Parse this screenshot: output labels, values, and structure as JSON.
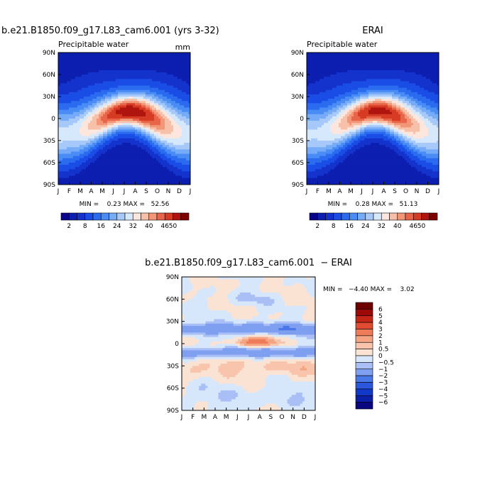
{
  "chart_data": [
    {
      "type": "heatmap",
      "title": "b.e21.B1850.f09_g17.L83_cam6.001 (yrs 3-32)",
      "left_label": "Precipitable water",
      "right_label": "mm",
      "x_ticks": [
        "J",
        "F",
        "M",
        "A",
        "M",
        "J",
        "J",
        "A",
        "S",
        "O",
        "N",
        "D",
        "J"
      ],
      "y_ticks": [
        "90N",
        "60N",
        "30N",
        "0",
        "30S",
        "60S",
        "90S"
      ],
      "ylim": [
        -90,
        90
      ],
      "stats_text": "MIN =    0.23 MAX =   52.56",
      "min": 0.23,
      "max": 52.56,
      "model": "tropical_max",
      "peak": 52.56,
      "levels": [
        2,
        5,
        8,
        12,
        16,
        20,
        24,
        28,
        32,
        36,
        40,
        43,
        46,
        50
      ],
      "colorbar_labels": [
        "2",
        "8",
        "16",
        "24",
        "32",
        "40",
        "46",
        "50"
      ],
      "colors": [
        "#08058a",
        "#0d1fb0",
        "#1433cc",
        "#1a4de6",
        "#2b6bf0",
        "#4a8cf5",
        "#75abf7",
        "#a6c9f9",
        "#d6e8fb",
        "#fce6dd",
        "#f7c0a8",
        "#f29677",
        "#e8654a",
        "#d63b24",
        "#b0140e",
        "#800000"
      ]
    },
    {
      "type": "heatmap",
      "title": "ERAI",
      "left_label": "Precipitable water",
      "x_ticks": [
        "J",
        "F",
        "M",
        "A",
        "M",
        "J",
        "J",
        "A",
        "S",
        "O",
        "N",
        "D",
        "J"
      ],
      "y_ticks": [
        "90N",
        "60N",
        "30N",
        "0",
        "30S",
        "60S",
        "90S"
      ],
      "ylim": [
        -90,
        90
      ],
      "stats_text": "MIN =    0.28 MAX =   51.13",
      "min": 0.28,
      "max": 51.13,
      "model": "tropical_max",
      "peak": 51.13,
      "levels": [
        2,
        5,
        8,
        12,
        16,
        20,
        24,
        28,
        32,
        36,
        40,
        43,
        46,
        50
      ],
      "colorbar_labels": [
        "2",
        "8",
        "16",
        "24",
        "32",
        "40",
        "46",
        "50"
      ],
      "colors": [
        "#08058a",
        "#0d1fb0",
        "#1433cc",
        "#1a4de6",
        "#2b6bf0",
        "#4a8cf5",
        "#75abf7",
        "#a6c9f9",
        "#d6e8fb",
        "#fce6dd",
        "#f7c0a8",
        "#f29677",
        "#e8654a",
        "#d63b24",
        "#b0140e",
        "#800000"
      ]
    },
    {
      "type": "heatmap",
      "title": "b.e21.B1850.f09_g17.L83_cam6.001  − ERAI",
      "x_ticks": [
        "J",
        "F",
        "M",
        "A",
        "M",
        "J",
        "J",
        "A",
        "S",
        "O",
        "N",
        "D",
        "J"
      ],
      "y_ticks": [
        "90N",
        "60N",
        "30N",
        "0",
        "30S",
        "60S",
        "90S"
      ],
      "ylim": [
        -90,
        90
      ],
      "stats_text": "MIN =   −4.40 MAX =    3.02",
      "min": -4.4,
      "max": 3.02,
      "model": "difference",
      "levels": [
        -6,
        -5,
        -4,
        -3,
        -2,
        -1,
        -0.5,
        0,
        0.5,
        1,
        2,
        3,
        4,
        5,
        6
      ],
      "colorbar_labels": [
        "6",
        "5",
        "4",
        "3",
        "2",
        "1",
        "0.5",
        "0",
        "−0.5",
        "−1",
        "−2",
        "−3",
        "−4",
        "−5",
        "−6"
      ],
      "colors": [
        "#0a0880",
        "#0c1fa8",
        "#1238c8",
        "#2b57dc",
        "#4a78e8",
        "#7f9ff0",
        "#a9bff5",
        "#d7e7fb",
        "#fbe3d4",
        "#f8c5ac",
        "#f4a482",
        "#ee7b5a",
        "#e04b31",
        "#c42516",
        "#9c0a08",
        "#6e0000"
      ]
    }
  ]
}
